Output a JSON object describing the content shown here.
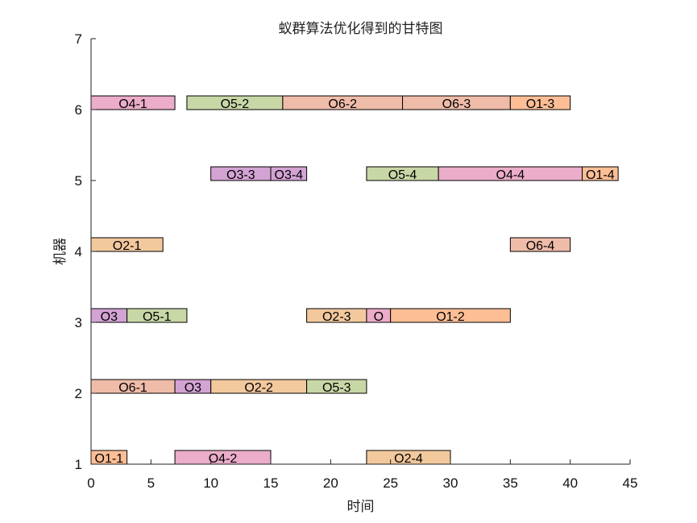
{
  "chart_data": {
    "type": "bar",
    "orientation": "horizontal",
    "title": "蚁群算法优化得到的甘特图",
    "xlabel": "时间",
    "ylabel": "机器",
    "xlim": [
      0,
      45
    ],
    "ylim": [
      1,
      7
    ],
    "xticks": [
      0,
      5,
      10,
      15,
      20,
      25,
      30,
      35,
      40,
      45
    ],
    "yticks": [
      1,
      2,
      3,
      4,
      5,
      6,
      7
    ],
    "grid": false,
    "colors": {
      "job1": "#FDBE96",
      "job2": "#F2C89D",
      "job3": "#D3A3D4",
      "job4": "#EBADC9",
      "job5": "#C8D7A6",
      "job6": "#EFBCA9"
    },
    "tasks": [
      {
        "label": "O1-1",
        "machine": 1,
        "start": 0,
        "end": 3,
        "job": "job1"
      },
      {
        "label": "O4-2",
        "machine": 1,
        "start": 7,
        "end": 15,
        "job": "job4"
      },
      {
        "label": "O2-4",
        "machine": 1,
        "start": 23,
        "end": 30,
        "job": "job2"
      },
      {
        "label": "O6-1",
        "machine": 2,
        "start": 0,
        "end": 7,
        "job": "job6"
      },
      {
        "label": "O3",
        "machine": 2,
        "start": 7,
        "end": 10,
        "job": "job3"
      },
      {
        "label": "O2-2",
        "machine": 2,
        "start": 10,
        "end": 18,
        "job": "job2"
      },
      {
        "label": "O5-3",
        "machine": 2,
        "start": 18,
        "end": 23,
        "job": "job5"
      },
      {
        "label": "O3",
        "machine": 3,
        "start": 0,
        "end": 3,
        "job": "job3"
      },
      {
        "label": "O5-1",
        "machine": 3,
        "start": 3,
        "end": 8,
        "job": "job5"
      },
      {
        "label": "O2-3",
        "machine": 3,
        "start": 18,
        "end": 23,
        "job": "job2"
      },
      {
        "label": "O",
        "machine": 3,
        "start": 23,
        "end": 25,
        "job": "job4"
      },
      {
        "label": "O1-2",
        "machine": 3,
        "start": 25,
        "end": 35,
        "job": "job1"
      },
      {
        "label": "O2-1",
        "machine": 4,
        "start": 0,
        "end": 6,
        "job": "job2"
      },
      {
        "label": "O6-4",
        "machine": 4,
        "start": 35,
        "end": 40,
        "job": "job6"
      },
      {
        "label": "O3-3",
        "machine": 5,
        "start": 10,
        "end": 15,
        "job": "job3"
      },
      {
        "label": "O3-4",
        "machine": 5,
        "start": 15,
        "end": 18,
        "job": "job3"
      },
      {
        "label": "O5-4",
        "machine": 5,
        "start": 23,
        "end": 29,
        "job": "job5"
      },
      {
        "label": "O4-4",
        "machine": 5,
        "start": 29,
        "end": 41,
        "job": "job4"
      },
      {
        "label": "O1-4",
        "machine": 5,
        "start": 41,
        "end": 44,
        "job": "job1"
      },
      {
        "label": "O4-1",
        "machine": 6,
        "start": 0,
        "end": 7,
        "job": "job4"
      },
      {
        "label": "O5-2",
        "machine": 6,
        "start": 8,
        "end": 16,
        "job": "job5"
      },
      {
        "label": "O6-2",
        "machine": 6,
        "start": 16,
        "end": 26,
        "job": "job6"
      },
      {
        "label": "O6-3",
        "machine": 6,
        "start": 26,
        "end": 35,
        "job": "job6"
      },
      {
        "label": "O1-3",
        "machine": 6,
        "start": 35,
        "end": 40,
        "job": "job1"
      }
    ]
  }
}
